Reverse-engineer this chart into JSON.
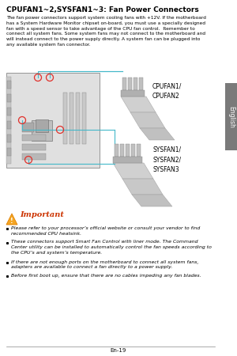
{
  "title": "CPUFAN1~2,SYSFAN1~3: Fan Power Connectors",
  "body_text": "The fan power connectors support system cooling fans with +12V. If the motherboard\nhas a System Hardware Monitor chipset on-board, you must use a specially designed\nfan with a speed sensor to take advantage of the CPU fan control.  Remember to\nconnect all system fans. Some system fans may not connect to the motherboard and\nwill instead connect to the power supply directly. A system fan can be plugged into\nany available system fan connector.",
  "connector_label1": "CPUFAN1/\nCPUFAN2",
  "connector_label2": "SYSFAN1/\nSYSFAN2/\nSYSFAN3",
  "important_label": "Important",
  "bullets": [
    "Please refer to your processor’s official website or consult your vendor to find\nrecommended CPU heatsink.",
    "These connectors support Smart Fan Control with liner mode. The Command\nCenter utility can be installed to automatically control the fan speeds according to\nthe CPU’s and system’s temperature.",
    "If there are not enough ports on the motherboard to connect all system fans,\nadapters are available to connect a fan directly to a power supply.",
    "Before first boot up, ensure that there are no cables impeding any fan blades."
  ],
  "page_number": "En-19",
  "side_tab": "English",
  "bg_color": "#ffffff",
  "tab_color": "#7a7a7a",
  "line_color": "#43b8c9",
  "red_circle_color": "#e0302a",
  "board_bg": "#e0e0e0",
  "board_edge": "#888888"
}
